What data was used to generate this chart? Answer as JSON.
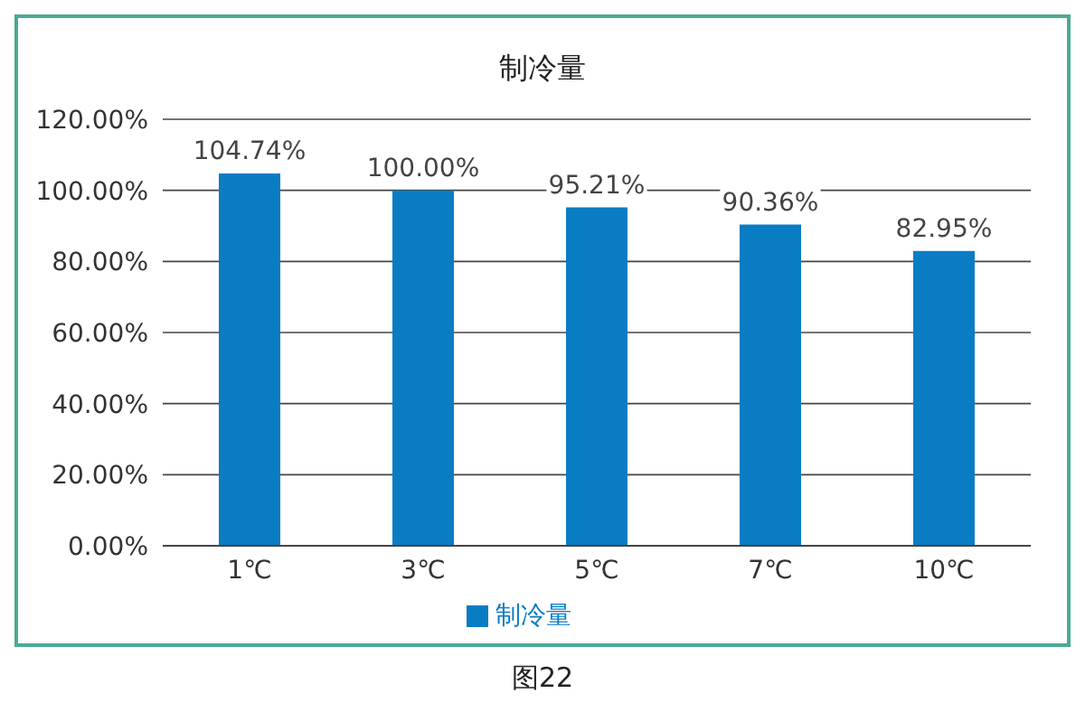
{
  "chart_data": {
    "type": "bar",
    "title": "制冷量",
    "categories": [
      "1℃",
      "3℃",
      "5℃",
      "7℃",
      "10℃"
    ],
    "series": [
      {
        "name": "制冷量",
        "color": "#0a7cc4",
        "values": [
          104.74,
          100,
          95.21,
          90.36,
          82.95
        ],
        "value_labels": [
          "104.74%",
          "100.00%",
          "95.21%",
          "90.36%",
          "82.95%"
        ]
      }
    ],
    "ylim": [
      0,
      120
    ],
    "yticks": [
      {
        "value": 0,
        "label": "0.00%"
      },
      {
        "value": 20,
        "label": "20.00%"
      },
      {
        "value": 40,
        "label": "40.00%"
      },
      {
        "value": 60,
        "label": "60.00%"
      },
      {
        "value": 80,
        "label": "80.00%"
      },
      {
        "value": 100,
        "label": "100.00%"
      },
      {
        "value": 120,
        "label": "120.00%"
      }
    ],
    "grid": "y",
    "legend": "bottom",
    "annotations": [
      "图22"
    ]
  }
}
